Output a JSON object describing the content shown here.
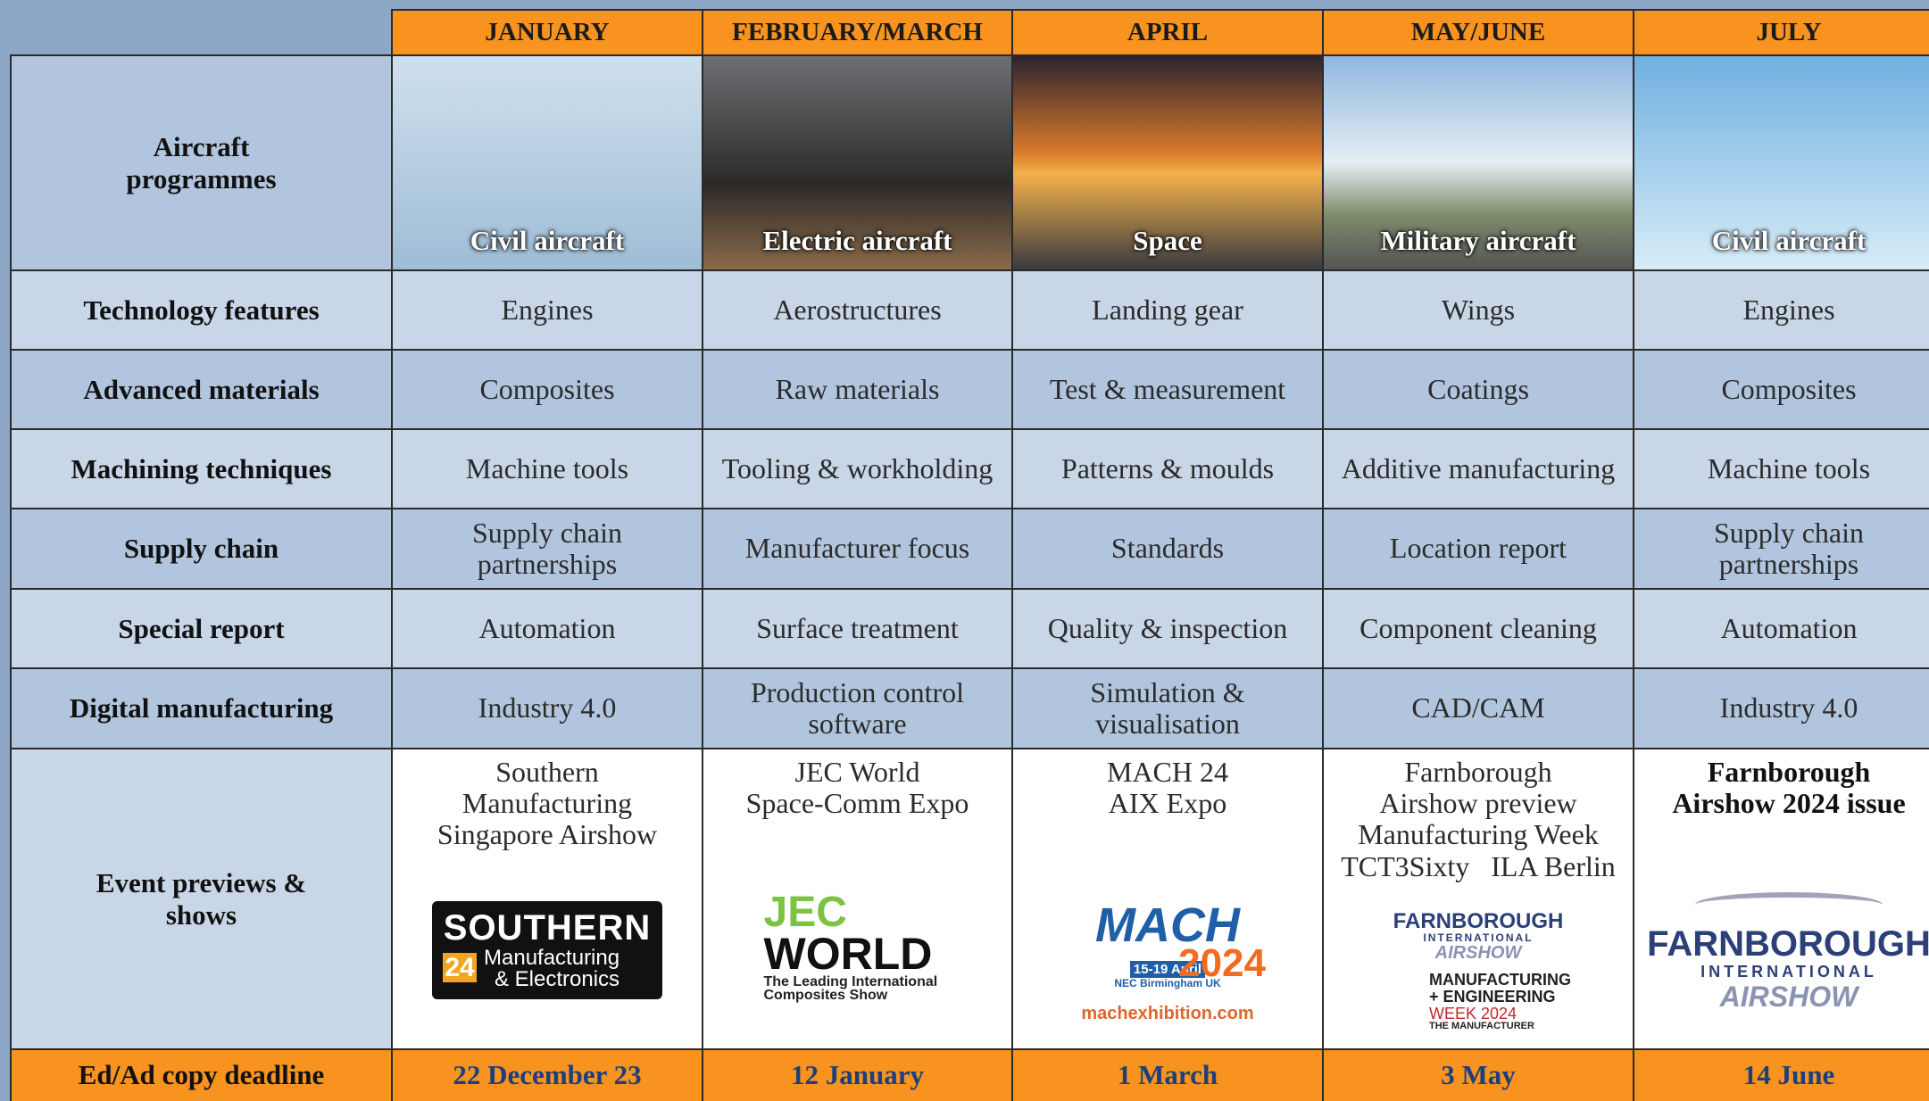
{
  "months": [
    "JANUARY",
    "FEBRUARY/MARCH",
    "APRIL",
    "MAY/JUNE",
    "JULY"
  ],
  "aircraft": {
    "label": "Aircraft programmes",
    "captions": [
      "Civil aircraft",
      "Electric aircraft",
      "Space",
      "Military aircraft",
      "Civil aircraft"
    ]
  },
  "rows": [
    {
      "label": "Technology features",
      "cells": [
        "Engines",
        "Aerostructures",
        "Landing gear",
        "Wings",
        "Engines"
      ]
    },
    {
      "label": "Advanced materials",
      "cells": [
        "Composites",
        "Raw materials",
        "Test & measurement",
        "Coatings",
        "Composites"
      ]
    },
    {
      "label": "Machining techniques",
      "cells": [
        "Machine tools",
        "Tooling & workholding",
        "Patterns & moulds",
        "Additive manufacturing",
        "Machine tools"
      ]
    },
    {
      "label": "Supply chain",
      "cells": [
        [
          "Supply chain",
          "partnerships"
        ],
        "Manufacturer focus",
        "Standards",
        "Location report",
        [
          "Supply chain",
          "partnerships"
        ]
      ]
    },
    {
      "label": "Special report",
      "cells": [
        "Automation",
        "Surface treatment",
        "Quality & inspection",
        "Component cleaning",
        "Automation"
      ]
    },
    {
      "label": "Digital manufacturing",
      "cells": [
        "Industry 4.0",
        [
          "Production control",
          "software"
        ],
        [
          "Simulation &",
          "visualisation"
        ],
        "CAD/CAM",
        "Industry 4.0"
      ]
    }
  ],
  "events": {
    "label": "Event previews & shows",
    "cells": [
      {
        "lines": [
          "Southern",
          "Manufacturing",
          "Singapore Airshow"
        ],
        "logo": {
          "kind": "southern",
          "texts": [
            "SOUTHERN",
            "24",
            "Manufacturing",
            "& Electronics"
          ]
        }
      },
      {
        "lines": [
          "JEC World",
          "Space-Comm Expo"
        ],
        "logo": {
          "kind": "jec",
          "texts": [
            "JEC",
            "WORLD",
            "The Leading International",
            "Composites Show"
          ]
        }
      },
      {
        "lines": [
          "MACH 24",
          "AIX Expo"
        ],
        "logo": {
          "kind": "mach",
          "texts": [
            "MACH",
            "15-19 April",
            "NEC Birmingham UK",
            "2024",
            "machexhibition.com"
          ]
        }
      },
      {
        "lines": [
          "Farnborough",
          "Airshow preview",
          "Manufacturing Week",
          "TCT3Sixty   ILA Berlin"
        ],
        "logo": {
          "kind": "farnsmall",
          "texts": [
            "FARNBOROUGH",
            "INTERNATIONAL",
            "AIRSHOW",
            "MANUFACTURING",
            "+ ENGINEERING",
            "WEEK 2024",
            "THE MANUFACTURER"
          ]
        }
      },
      {
        "lines": [
          "Farnborough",
          "Airshow 2024 issue"
        ],
        "bold": true,
        "logo": {
          "kind": "farn",
          "texts": [
            "FARNBOROUGH",
            "INTERNATIONAL",
            "AIRSHOW"
          ]
        }
      }
    ]
  },
  "deadline": {
    "label": "Ed/Ad copy deadline",
    "dates": [
      "22 December 23",
      "12 January",
      "1 March",
      "3 May",
      "14 June"
    ]
  }
}
